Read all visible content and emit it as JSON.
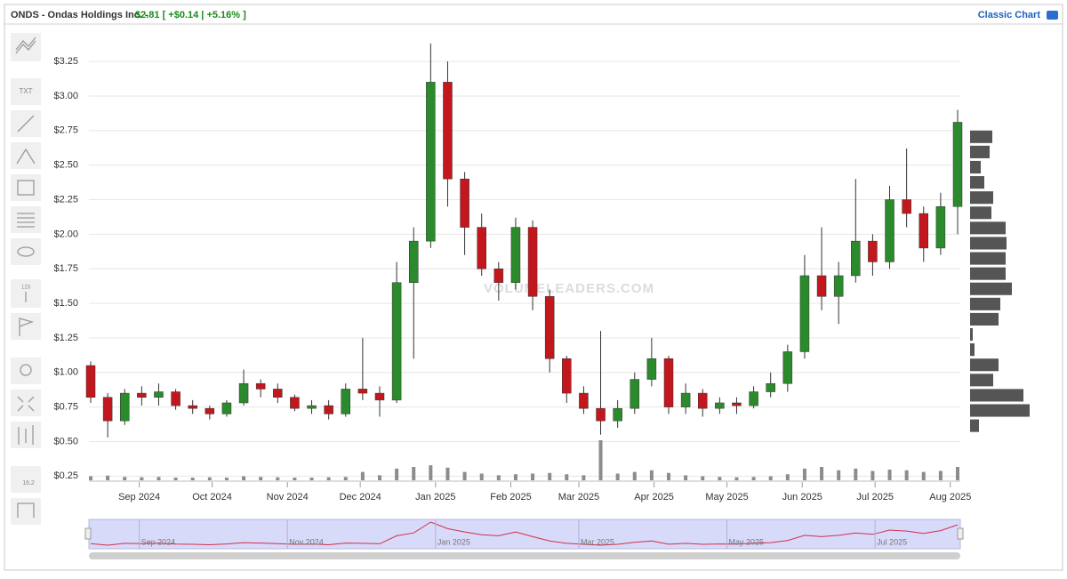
{
  "header": {
    "symbol": "ONDS - Ondas Holdings Inc. -",
    "quote": "$2.81 [ +$0.14 | +5.16% ]",
    "link": "Classic Chart"
  },
  "toolbar": [
    "TXT",
    "123",
    "16.2"
  ],
  "chart_data": {
    "type": "candlestick",
    "watermark": "VOLUMELEADERS.COM",
    "up_color": "#2b8a2b",
    "down_color": "#c1171d",
    "volume_color": "#8c8c8c",
    "grid": true,
    "x": [
      "2024-08-12",
      "2024-08-19",
      "2024-08-26",
      "2024-09-02",
      "2024-09-09",
      "2024-09-16",
      "2024-09-23",
      "2024-09-30",
      "2024-10-07",
      "2024-10-14",
      "2024-10-21",
      "2024-10-28",
      "2024-11-04",
      "2024-11-11",
      "2024-11-18",
      "2024-11-25",
      "2024-12-02",
      "2024-12-09",
      "2024-12-16",
      "2024-12-23",
      "2024-12-30",
      "2025-01-06",
      "2025-01-13",
      "2025-01-20",
      "2025-01-27",
      "2025-02-03",
      "2025-02-10",
      "2025-02-17",
      "2025-02-24",
      "2025-03-03",
      "2025-03-10",
      "2025-03-17",
      "2025-03-24",
      "2025-03-31",
      "2025-04-07",
      "2025-04-14",
      "2025-04-21",
      "2025-04-28",
      "2025-05-05",
      "2025-05-12",
      "2025-05-19",
      "2025-05-26",
      "2025-06-02",
      "2025-06-09",
      "2025-06-16",
      "2025-06-23",
      "2025-06-30",
      "2025-07-07",
      "2025-07-14",
      "2025-07-21",
      "2025-07-28",
      "2025-08-04"
    ],
    "open": [
      1.05,
      0.82,
      0.65,
      0.85,
      0.82,
      0.86,
      0.76,
      0.74,
      0.7,
      0.78,
      0.92,
      0.88,
      0.82,
      0.74,
      0.76,
      0.7,
      0.88,
      0.85,
      0.8,
      1.65,
      1.95,
      3.1,
      2.4,
      2.05,
      1.75,
      1.65,
      2.05,
      1.55,
      1.1,
      0.85,
      0.74,
      0.65,
      0.74,
      0.95,
      1.1,
      0.75,
      0.85,
      0.74,
      0.78,
      0.76,
      0.86,
      0.92,
      1.15,
      1.7,
      1.55,
      1.7,
      1.95,
      1.8,
      2.25,
      2.15,
      1.9,
      2.2
    ],
    "high": [
      1.08,
      0.85,
      0.88,
      0.9,
      0.92,
      0.88,
      0.8,
      0.76,
      0.8,
      1.02,
      0.95,
      0.92,
      0.84,
      0.8,
      0.8,
      0.92,
      1.25,
      0.9,
      1.8,
      2.05,
      3.38,
      3.25,
      2.45,
      2.15,
      1.8,
      2.12,
      2.1,
      1.6,
      1.12,
      0.9,
      1.3,
      0.8,
      1.0,
      1.25,
      1.12,
      0.92,
      0.88,
      0.82,
      0.82,
      0.9,
      1.0,
      1.2,
      1.85,
      2.05,
      1.8,
      2.4,
      2.0,
      2.35,
      2.62,
      2.2,
      2.3,
      2.9
    ],
    "low": [
      0.78,
      0.53,
      0.62,
      0.76,
      0.76,
      0.73,
      0.7,
      0.66,
      0.68,
      0.76,
      0.82,
      0.78,
      0.72,
      0.7,
      0.66,
      0.68,
      0.8,
      0.68,
      0.78,
      1.1,
      1.9,
      2.2,
      1.85,
      1.7,
      1.52,
      1.6,
      1.45,
      1.0,
      0.78,
      0.7,
      0.55,
      0.6,
      0.7,
      0.9,
      0.7,
      0.7,
      0.68,
      0.7,
      0.7,
      0.74,
      0.82,
      0.86,
      1.1,
      1.45,
      1.35,
      1.65,
      1.7,
      1.75,
      2.05,
      1.8,
      1.85,
      2.0
    ],
    "close": [
      0.82,
      0.65,
      0.85,
      0.82,
      0.86,
      0.76,
      0.74,
      0.7,
      0.78,
      0.92,
      0.88,
      0.82,
      0.74,
      0.76,
      0.7,
      0.88,
      0.85,
      0.8,
      1.65,
      1.95,
      3.1,
      2.4,
      2.05,
      1.75,
      1.65,
      2.05,
      1.55,
      1.1,
      0.85,
      0.74,
      0.65,
      0.74,
      0.95,
      1.1,
      0.75,
      0.85,
      0.74,
      0.78,
      0.76,
      0.86,
      0.92,
      1.15,
      1.7,
      1.55,
      1.7,
      1.95,
      1.8,
      2.25,
      2.15,
      1.9,
      2.2,
      2.81
    ],
    "volume": [
      12,
      14,
      10,
      9,
      10,
      8,
      8,
      9,
      8,
      12,
      10,
      9,
      8,
      8,
      9,
      10,
      25,
      15,
      35,
      40,
      45,
      38,
      25,
      20,
      15,
      18,
      20,
      22,
      18,
      15,
      120,
      20,
      25,
      30,
      22,
      15,
      12,
      10,
      9,
      10,
      12,
      18,
      35,
      40,
      30,
      35,
      28,
      32,
      30,
      25,
      28,
      40
    ],
    "ylim": [
      0.22,
      3.45
    ],
    "yticks": [
      {
        "value": 0.25,
        "label": "$0.25"
      },
      {
        "value": 0.5,
        "label": "$0.50"
      },
      {
        "value": 0.75,
        "label": "$0.75"
      },
      {
        "value": 1,
        "label": "$1.00"
      },
      {
        "value": 1.25,
        "label": "$1.25"
      },
      {
        "value": 1.5,
        "label": "$1.50"
      },
      {
        "value": 1.75,
        "label": "$1.75"
      },
      {
        "value": 2,
        "label": "$2.00"
      },
      {
        "value": 2.25,
        "label": "$2.25"
      },
      {
        "value": 2.5,
        "label": "$2.50"
      },
      {
        "value": 2.75,
        "label": "$2.75"
      },
      {
        "value": 3,
        "label": "$3.00"
      },
      {
        "value": 3.25,
        "label": "$3.25"
      }
    ],
    "xticks": [
      {
        "value": "2024-09-01",
        "label": "Sep 2024"
      },
      {
        "value": "2024-10-01",
        "label": "Oct 2024"
      },
      {
        "value": "2024-11-01",
        "label": "Nov 2024"
      },
      {
        "value": "2024-12-01",
        "label": "Dec 2024"
      },
      {
        "value": "2025-01-01",
        "label": "Jan 2025"
      },
      {
        "value": "2025-02-01",
        "label": "Feb 2025"
      },
      {
        "value": "2025-03-01",
        "label": "Mar 2025"
      },
      {
        "value": "2025-04-01",
        "label": "Apr 2025"
      },
      {
        "value": "2025-05-01",
        "label": "May 2025"
      },
      {
        "value": "2025-06-01",
        "label": "Jun 2025"
      },
      {
        "value": "2025-07-01",
        "label": "Jul 2025"
      },
      {
        "value": "2025-08-01",
        "label": "Aug 2025"
      }
    ],
    "navigator_ticks": [
      {
        "value": "2024-09-01",
        "label": "Sep 2024"
      },
      {
        "value": "2024-11-01",
        "label": "Nov 2024"
      },
      {
        "value": "2025-01-01",
        "label": "Jan 2025"
      },
      {
        "value": "2025-03-01",
        "label": "Mar 2025"
      },
      {
        "value": "2025-05-01",
        "label": "May 2025"
      },
      {
        "value": "2025-07-01",
        "label": "Jul 2025"
      }
    ],
    "volume_profile": {
      "color": "#555555",
      "bins": [
        0.56,
        0.67,
        0.78,
        0.89,
        1.0,
        1.11,
        1.22,
        1.33,
        1.44,
        1.55,
        1.66,
        1.77,
        1.88,
        1.99,
        2.1,
        2.21,
        2.32,
        2.43,
        2.54,
        2.65,
        2.76
      ],
      "values": [
        10,
        67,
        60,
        26,
        32,
        5,
        3,
        32,
        34,
        47,
        40,
        40,
        41,
        40,
        24,
        26,
        16,
        12,
        22,
        25
      ]
    }
  }
}
